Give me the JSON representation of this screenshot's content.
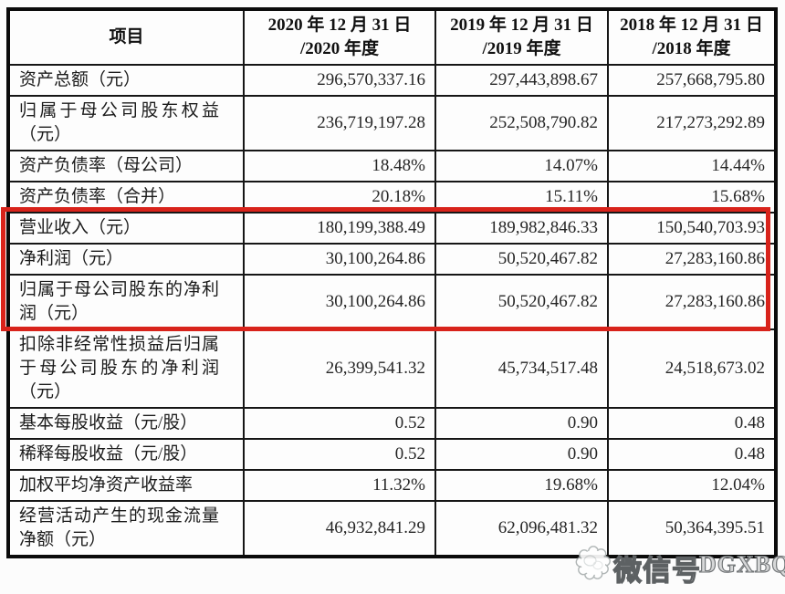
{
  "table": {
    "header": {
      "item_label": "项目",
      "periods": [
        {
          "line1": "2020 年 12 月 31 日",
          "line2": "/2020 年度"
        },
        {
          "line1": "2019 年 12 月 31 日",
          "line2": "/2019 年度"
        },
        {
          "line1": "2018 年 12 月 31 日",
          "line2": "/2018 年度"
        }
      ]
    },
    "rows": [
      {
        "label": "资产总额（元）",
        "values": [
          "296,570,337.16",
          "297,443,898.67",
          "257,668,795.80"
        ],
        "highlighted": false
      },
      {
        "label": "归属于母公司股东权益（元）",
        "values": [
          "236,719,197.28",
          "252,508,790.82",
          "217,273,292.89"
        ],
        "highlighted": false
      },
      {
        "label": "资产负债率（母公司）",
        "values": [
          "18.48%",
          "14.07%",
          "14.44%"
        ],
        "highlighted": false
      },
      {
        "label": "资产负债率（合并）",
        "values": [
          "20.18%",
          "15.11%",
          "15.68%"
        ],
        "highlighted": false
      },
      {
        "label": "营业收入（元）",
        "values": [
          "180,199,388.49",
          "189,982,846.33",
          "150,540,703.93"
        ],
        "highlighted": true
      },
      {
        "label": "净利润（元）",
        "values": [
          "30,100,264.86",
          "50,520,467.82",
          "27,283,160.86"
        ],
        "highlighted": true
      },
      {
        "label": "归属于母公司股东的净利润（元）",
        "values": [
          "30,100,264.86",
          "50,520,467.82",
          "27,283,160.86"
        ],
        "highlighted": true
      },
      {
        "label": "扣除非经常性损益后归属于母公司股东的净利润（元）",
        "values": [
          "26,399,541.32",
          "45,734,517.48",
          "24,518,673.02"
        ],
        "highlighted": false
      },
      {
        "label": "基本每股收益（元/股）",
        "values": [
          "0.52",
          "0.90",
          "0.48"
        ],
        "highlighted": false
      },
      {
        "label": "稀释每股收益（元/股）",
        "values": [
          "0.52",
          "0.90",
          "0.48"
        ],
        "highlighted": false
      },
      {
        "label": "加权平均净资产收益率",
        "values": [
          "11.32%",
          "19.68%",
          "12.04%"
        ],
        "highlighted": false
      },
      {
        "label": "经营活动产生的现金流量净额（元）",
        "values": [
          "46,932,841.29",
          "62,096,481.32",
          "50,364,395.51"
        ],
        "highlighted": false
      }
    ]
  },
  "highlight": {
    "color": "#d8231b"
  },
  "watermark": {
    "label": "微信号",
    "overlay_text": "DGXBQB",
    "icon": "wechat-icon"
  }
}
